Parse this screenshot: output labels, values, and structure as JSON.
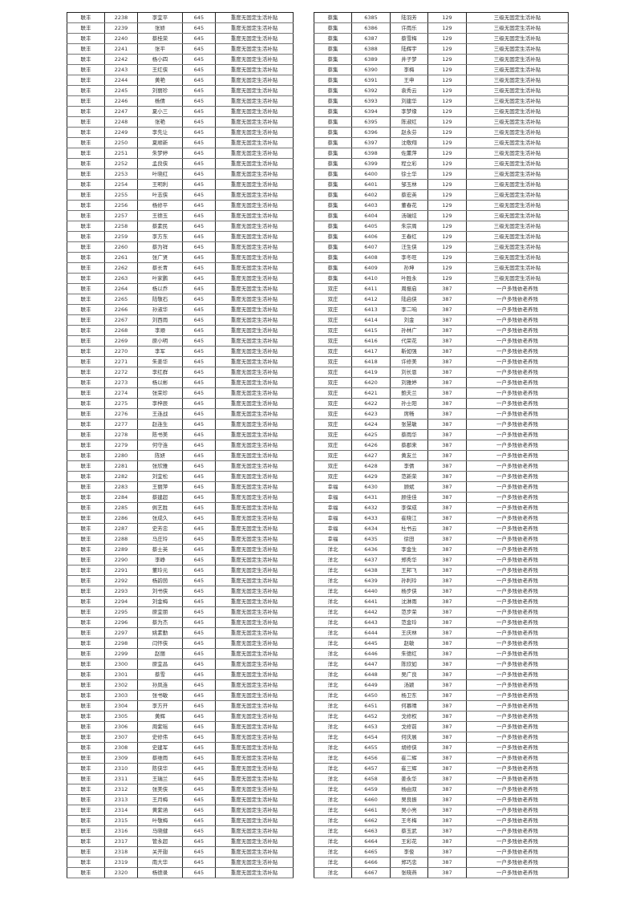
{
  "left_table": {
    "rows": [
      [
        "联丰",
        "2238",
        "李宜平",
        "645",
        "重度无固定生活补贴"
      ],
      [
        "联丰",
        "2239",
        "张娇",
        "645",
        "重度无固定生活补贴"
      ],
      [
        "联丰",
        "2240",
        "蔡桂荣",
        "645",
        "重度无固定生活补贴"
      ],
      [
        "联丰",
        "2241",
        "张平",
        "645",
        "重度无固定生活补贴"
      ],
      [
        "联丰",
        "2242",
        "杨小四",
        "645",
        "重度无固定生活补贴"
      ],
      [
        "联丰",
        "2243",
        "王红侠",
        "645",
        "重度无固定生活补贴"
      ],
      [
        "联丰",
        "2244",
        "黄艳",
        "645",
        "重度无固定生活补贴"
      ],
      [
        "联丰",
        "2245",
        "刘丽珍",
        "645",
        "重度无固定生活补贴"
      ],
      [
        "联丰",
        "2246",
        "杨倩",
        "645",
        "重度无固定生活补贴"
      ],
      [
        "联丰",
        "2247",
        "夏小三",
        "645",
        "重度无固定生活补贴"
      ],
      [
        "联丰",
        "2248",
        "张艳",
        "645",
        "重度无固定生活补贴"
      ],
      [
        "联丰",
        "2249",
        "李先让",
        "645",
        "重度无固定生活补贴"
      ],
      [
        "联丰",
        "2250",
        "夏顺新",
        "645",
        "重度无固定生活补贴"
      ],
      [
        "联丰",
        "2251",
        "朱梦婷",
        "645",
        "重度无固定生活补贴"
      ],
      [
        "联丰",
        "2252",
        "孟良侠",
        "645",
        "重度无固定生活补贴"
      ],
      [
        "联丰",
        "2253",
        "叶晓红",
        "645",
        "重度无固定生活补贴"
      ],
      [
        "联丰",
        "2254",
        "王明利",
        "645",
        "重度无固定生活补贴"
      ],
      [
        "联丰",
        "2255",
        "叶志侠",
        "645",
        "重度无固定生活补贴"
      ],
      [
        "联丰",
        "2256",
        "杨修平",
        "645",
        "重度无固定生活补贴"
      ],
      [
        "联丰",
        "2257",
        "王德玉",
        "645",
        "重度无固定生活补贴"
      ],
      [
        "联丰",
        "2258",
        "蔡素民",
        "645",
        "重度无固定生活补贴"
      ],
      [
        "联丰",
        "2259",
        "李方东",
        "645",
        "重度无固定生活补贴"
      ],
      [
        "联丰",
        "2260",
        "蔡为祥",
        "645",
        "重度无固定生活补贴"
      ],
      [
        "联丰",
        "2261",
        "张广贤",
        "645",
        "重度无固定生活补贴"
      ],
      [
        "联丰",
        "2262",
        "蔡长青",
        "645",
        "重度无固定生活补贴"
      ],
      [
        "联丰",
        "2263",
        "叶家鹏",
        "645",
        "重度无固定生活补贴"
      ],
      [
        "联丰",
        "2264",
        "杨以乔",
        "645",
        "重度无固定生活补贴"
      ],
      [
        "联丰",
        "2265",
        "陆敬石",
        "645",
        "重度无固定生活补贴"
      ],
      [
        "联丰",
        "2266",
        "孙淑华",
        "645",
        "重度无固定生活补贴"
      ],
      [
        "联丰",
        "2267",
        "刘西雨",
        "645",
        "重度无固定生活补贴"
      ],
      [
        "联丰",
        "2268",
        "李顺",
        "645",
        "重度无固定生活补贴"
      ],
      [
        "联丰",
        "2269",
        "原小明",
        "645",
        "重度无固定生活补贴"
      ],
      [
        "联丰",
        "2270",
        "李军",
        "645",
        "重度无固定生活补贴"
      ],
      [
        "联丰",
        "2271",
        "朱姜华",
        "645",
        "重度无固定生活补贴"
      ],
      [
        "联丰",
        "2272",
        "李红群",
        "645",
        "重度无固定生活补贴"
      ],
      [
        "联丰",
        "2273",
        "杨以彬",
        "645",
        "重度无固定生活补贴"
      ],
      [
        "联丰",
        "2274",
        "张荣珍",
        "645",
        "重度无固定生活补贴"
      ],
      [
        "联丰",
        "2275",
        "李梓辰",
        "645",
        "重度无固定生活补贴"
      ],
      [
        "联丰",
        "2276",
        "王连战",
        "645",
        "重度无固定生活补贴"
      ],
      [
        "联丰",
        "2277",
        "赵连生",
        "645",
        "重度无固定生活补贴"
      ],
      [
        "联丰",
        "2278",
        "陈书美",
        "645",
        "重度无固定生活补贴"
      ],
      [
        "联丰",
        "2279",
        "何守连",
        "645",
        "重度无固定生活补贴"
      ],
      [
        "联丰",
        "2280",
        "陈妍",
        "645",
        "重度无固定生活补贴"
      ],
      [
        "联丰",
        "2281",
        "张欣雅",
        "645",
        "重度无固定生活补贴"
      ],
      [
        "联丰",
        "2282",
        "刘宜松",
        "645",
        "重度无固定生活补贴"
      ],
      [
        "联丰",
        "2283",
        "王丽萍",
        "645",
        "重度无固定生活补贴"
      ],
      [
        "联丰",
        "2284",
        "蔡建超",
        "645",
        "重度无固定生活补贴"
      ],
      [
        "联丰",
        "2285",
        "佩艺胜",
        "645",
        "重度无固定生活补贴"
      ],
      [
        "联丰",
        "2286",
        "张成久",
        "645",
        "重度无固定生活补贴"
      ],
      [
        "联丰",
        "2287",
        "史芳忠",
        "645",
        "重度无固定生活补贴"
      ],
      [
        "联丰",
        "2288",
        "马庄玲",
        "645",
        "重度无固定生活补贴"
      ],
      [
        "联丰",
        "2289",
        "蔡士英",
        "645",
        "重度无固定生活补贴"
      ],
      [
        "联丰",
        "2290",
        "李峥",
        "645",
        "重度无固定生活补贴"
      ],
      [
        "联丰",
        "2291",
        "董玲元",
        "645",
        "重度无固定生活补贴"
      ],
      [
        "联丰",
        "2292",
        "杨韵茵",
        "645",
        "重度无固定生活补贴"
      ],
      [
        "联丰",
        "2293",
        "刘书侠",
        "645",
        "重度无固定生活补贴"
      ],
      [
        "联丰",
        "2294",
        "刘金梅",
        "645",
        "重度无固定生活补贴"
      ],
      [
        "联丰",
        "2295",
        "原宜朋",
        "645",
        "重度无固定生活补贴"
      ],
      [
        "联丰",
        "2296",
        "蔡为杰",
        "645",
        "重度无固定生活补贴"
      ],
      [
        "联丰",
        "2297",
        "姚素勤",
        "645",
        "重度无固定生活补贴"
      ],
      [
        "联丰",
        "2298",
        "闫怀侠",
        "645",
        "重度无固定生活补贴"
      ],
      [
        "联丰",
        "2299",
        "赵丽",
        "645",
        "重度无固定生活补贴"
      ],
      [
        "联丰",
        "2300",
        "原宜昌",
        "645",
        "重度无固定生活补贴"
      ],
      [
        "联丰",
        "2301",
        "蔡雪",
        "645",
        "重度无固定生活补贴"
      ],
      [
        "联丰",
        "2302",
        "孙凤连",
        "645",
        "重度无固定生活补贴"
      ],
      [
        "联丰",
        "2303",
        "张书敏",
        "645",
        "重度无固定生活补贴"
      ],
      [
        "联丰",
        "2304",
        "李方开",
        "645",
        "重度无固定生活补贴"
      ],
      [
        "联丰",
        "2305",
        "黄辉",
        "645",
        "重度无固定生活补贴"
      ],
      [
        "联丰",
        "2306",
        "周紫瑶",
        "645",
        "重度无固定生活补贴"
      ],
      [
        "联丰",
        "2307",
        "史修伟",
        "645",
        "重度无固定生活补贴"
      ],
      [
        "联丰",
        "2308",
        "史建军",
        "645",
        "重度无固定生活补贴"
      ],
      [
        "联丰",
        "2309",
        "蔡维雨",
        "645",
        "重度无固定生活补贴"
      ],
      [
        "联丰",
        "2310",
        "陈侠华",
        "645",
        "重度无固定生活补贴"
      ],
      [
        "联丰",
        "2311",
        "王瑞兰",
        "645",
        "重度无固定生活补贴"
      ],
      [
        "联丰",
        "2312",
        "张美侠",
        "645",
        "重度无固定生活补贴"
      ],
      [
        "联丰",
        "2313",
        "王月梅",
        "645",
        "重度无固定生活补贴"
      ],
      [
        "联丰",
        "2314",
        "黄紫涵",
        "645",
        "重度无固定生活补贴"
      ],
      [
        "联丰",
        "2315",
        "叶敬梅",
        "645",
        "重度无固定生活补贴"
      ],
      [
        "联丰",
        "2316",
        "马晓健",
        "645",
        "重度无固定生活补贴"
      ],
      [
        "联丰",
        "2317",
        "管永超",
        "645",
        "重度无固定生活补贴"
      ],
      [
        "联丰",
        "2318",
        "关开翅",
        "645",
        "重度无固定生活补贴"
      ],
      [
        "联丰",
        "2319",
        "南大华",
        "645",
        "重度无固定生活补贴"
      ],
      [
        "联丰",
        "2320",
        "杨德录",
        "645",
        "重度无固定生活补贴"
      ]
    ]
  },
  "right_table": {
    "rows": [
      [
        "蔡集",
        "6385",
        "陆羽芳",
        "129",
        "三级无固定生活补贴"
      ],
      [
        "蔡集",
        "6386",
        "许雨乐",
        "129",
        "三级无固定生活补贴"
      ],
      [
        "蔡集",
        "6387",
        "蔡雪梅",
        "129",
        "三级无固定生活补贴"
      ],
      [
        "蔡集",
        "6388",
        "陆辉宇",
        "129",
        "三级无固定生活补贴"
      ],
      [
        "蔡集",
        "6389",
        "井子梦",
        "129",
        "三级无固定生活补贴"
      ],
      [
        "蔡集",
        "6390",
        "李梅",
        "129",
        "三级无固定生活补贴"
      ],
      [
        "蔡集",
        "6391",
        "王申",
        "129",
        "三级无固定生活补贴"
      ],
      [
        "蔡集",
        "6392",
        "袁秀云",
        "129",
        "三级无固定生活补贴"
      ],
      [
        "蔡集",
        "6393",
        "刘建华",
        "129",
        "三级无固定生活补贴"
      ],
      [
        "蔡集",
        "6394",
        "李梦缘",
        "129",
        "三级无固定生活补贴"
      ],
      [
        "蔡集",
        "6395",
        "陈淑红",
        "129",
        "三级无固定生活补贴"
      ],
      [
        "蔡集",
        "6396",
        "赵永芬",
        "129",
        "三级无固定生活补贴"
      ],
      [
        "蔡集",
        "6397",
        "沈敬翔",
        "129",
        "三级无固定生活补贴"
      ],
      [
        "蔡集",
        "6398",
        "佐薰萍",
        "129",
        "三级无固定生活补贴"
      ],
      [
        "蔡集",
        "6399",
        "程立彩",
        "129",
        "三级无固定生活补贴"
      ],
      [
        "蔡集",
        "6400",
        "徐士华",
        "129",
        "三级无固定生活补贴"
      ],
      [
        "蔡集",
        "6401",
        "邹玉林",
        "129",
        "三级无固定生活补贴"
      ],
      [
        "蔡集",
        "6402",
        "蔡宏英",
        "129",
        "三级无固定生活补贴"
      ],
      [
        "蔡集",
        "6403",
        "董春花",
        "129",
        "三级无固定生活补贴"
      ],
      [
        "蔡集",
        "6404",
        "汤瑞炫",
        "129",
        "三级无固定生活补贴"
      ],
      [
        "蔡集",
        "6405",
        "朱宗周",
        "129",
        "三级无固定生活补贴"
      ],
      [
        "蔡集",
        "6406",
        "王春红",
        "129",
        "三级无固定生活补贴"
      ],
      [
        "蔡集",
        "6407",
        "汪生侠",
        "129",
        "三级无固定生活补贴"
      ],
      [
        "蔡集",
        "6408",
        "李冬旺",
        "129",
        "三级无固定生活补贴"
      ],
      [
        "蔡集",
        "6409",
        "孙坤",
        "129",
        "三级无固定生活补贴"
      ],
      [
        "蔡集",
        "6410",
        "叶胜永",
        "129",
        "三级无固定生活补贴"
      ],
      [
        "双庄",
        "6411",
        "周振启",
        "387",
        "一户多残依老养残"
      ],
      [
        "双庄",
        "6412",
        "陆启侠",
        "387",
        "一户多残依老养残"
      ],
      [
        "双庄",
        "6413",
        "李二响",
        "387",
        "一户多残依老养残"
      ],
      [
        "双庄",
        "6414",
        "刘金",
        "387",
        "一户多残依老养残"
      ],
      [
        "双庄",
        "6415",
        "孙林广",
        "387",
        "一户多残依老养残"
      ],
      [
        "双庄",
        "6416",
        "代荣花",
        "387",
        "一户多残依老养残"
      ],
      [
        "双庄",
        "6417",
        "靳如强",
        "387",
        "一户多残依老养残"
      ],
      [
        "双庄",
        "6418",
        "许修美",
        "387",
        "一户多残依老养残"
      ],
      [
        "双庄",
        "6419",
        "刘长恩",
        "387",
        "一户多残依老养残"
      ],
      [
        "双庄",
        "6420",
        "刘雅婷",
        "387",
        "一户多残依老养残"
      ],
      [
        "双庄",
        "6421",
        "鲍夫兰",
        "387",
        "一户多残依老养残"
      ],
      [
        "双庄",
        "6422",
        "孙士阳",
        "387",
        "一户多残依老养残"
      ],
      [
        "双庄",
        "6423",
        "席畅",
        "387",
        "一户多残依老养残"
      ],
      [
        "双庄",
        "6424",
        "张慧敏",
        "387",
        "一户多残依老养残"
      ],
      [
        "双庄",
        "6425",
        "蔡雨华",
        "387",
        "一户多残依老养残"
      ],
      [
        "双庄",
        "6426",
        "蔡郡来",
        "387",
        "一户多残依老养残"
      ],
      [
        "双庄",
        "6427",
        "黄友兰",
        "387",
        "一户多残依老养残"
      ],
      [
        "双庄",
        "6428",
        "李倩",
        "387",
        "一户多残依老养残"
      ],
      [
        "双庄",
        "6429",
        "范新荣",
        "387",
        "一户多残依老养残"
      ],
      [
        "幸福",
        "6430",
        "顾斌",
        "387",
        "一户多残依老养残"
      ],
      [
        "幸福",
        "6431",
        "顾佳佳",
        "387",
        "一户多残依老养残"
      ],
      [
        "幸福",
        "6432",
        "李保成",
        "387",
        "一户多残依老养残"
      ],
      [
        "幸福",
        "6433",
        "崔晓江",
        "387",
        "一户多残依老养残"
      ],
      [
        "幸福",
        "6434",
        "杜书云",
        "387",
        "一户多残依老养残"
      ],
      [
        "幸福",
        "6435",
        "徐田",
        "387",
        "一户多残依老养残"
      ],
      [
        "洋北",
        "6436",
        "李金生",
        "387",
        "一户多残依老养残"
      ],
      [
        "洋北",
        "6437",
        "郑秀华",
        "387",
        "一户多残依老养残"
      ],
      [
        "洋北",
        "6438",
        "王邦飞",
        "387",
        "一户多残依老养残"
      ],
      [
        "洋北",
        "6439",
        "孙利玲",
        "387",
        "一户多残依老养残"
      ],
      [
        "洋北",
        "6440",
        "杨步侠",
        "387",
        "一户多残依老养残"
      ],
      [
        "洋北",
        "6441",
        "沈淋雨",
        "387",
        "一户多残依老养残"
      ],
      [
        "洋北",
        "6442",
        "范步荣",
        "387",
        "一户多残依老养残"
      ],
      [
        "洋北",
        "6443",
        "范金玲",
        "387",
        "一户多残依老养残"
      ],
      [
        "洋北",
        "6444",
        "王庆林",
        "387",
        "一户多残依老养残"
      ],
      [
        "洋北",
        "6445",
        "赵敏",
        "387",
        "一户多残依老养残"
      ],
      [
        "洋北",
        "6446",
        "朱德红",
        "387",
        "一户多残依老养残"
      ],
      [
        "洋北",
        "6447",
        "陈欣如",
        "387",
        "一户多残依老养残"
      ],
      [
        "洋北",
        "6448",
        "吴广良",
        "387",
        "一户多残依老养残"
      ],
      [
        "洋北",
        "6449",
        "汤颖",
        "387",
        "一户多残依老养残"
      ],
      [
        "洋北",
        "6450",
        "杨卫东",
        "387",
        "一户多残依老养残"
      ],
      [
        "洋北",
        "6451",
        "何慕晴",
        "387",
        "一户多残依老养残"
      ],
      [
        "洋北",
        "6452",
        "戈修权",
        "387",
        "一户多残依老养残"
      ],
      [
        "洋北",
        "6453",
        "戈修前",
        "387",
        "一户多残依老养残"
      ],
      [
        "洋北",
        "6454",
        "何庆展",
        "387",
        "一户多残依老养残"
      ],
      [
        "洋北",
        "6455",
        "胡修侠",
        "387",
        "一户多残依老养残"
      ],
      [
        "洋北",
        "6456",
        "崔二辉",
        "387",
        "一户多残依老养残"
      ],
      [
        "洋北",
        "6457",
        "崔三辉",
        "387",
        "一户多残依老养残"
      ],
      [
        "洋北",
        "6458",
        "姜永华",
        "387",
        "一户多残依老养残"
      ],
      [
        "洋北",
        "6459",
        "杨由双",
        "387",
        "一户多残依老养残"
      ],
      [
        "洋北",
        "6460",
        "吴良振",
        "387",
        "一户多残依老养残"
      ],
      [
        "洋北",
        "6461",
        "吴小亮",
        "387",
        "一户多残依老养残"
      ],
      [
        "洋北",
        "6462",
        "王冬梅",
        "387",
        "一户多残依老养残"
      ],
      [
        "洋北",
        "6463",
        "蔡玉武",
        "387",
        "一户多残依老养残"
      ],
      [
        "洋北",
        "6464",
        "王彩花",
        "387",
        "一户多残依老养残"
      ],
      [
        "洋北",
        "6465",
        "李俊",
        "387",
        "一户多残依老养残"
      ],
      [
        "洋北",
        "6466",
        "郑巧忠",
        "387",
        "一户多残依老养残"
      ],
      [
        "洋北",
        "6467",
        "张晓燕",
        "387",
        "一户多残依老养残"
      ]
    ]
  }
}
